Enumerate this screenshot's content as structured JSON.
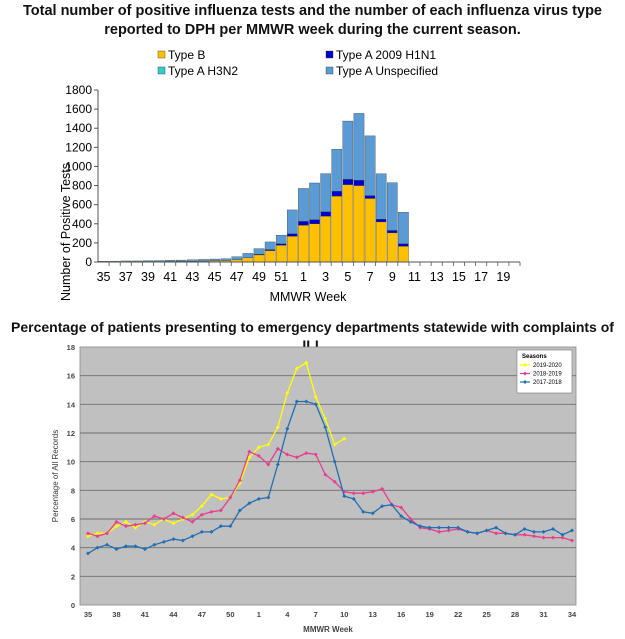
{
  "chart_data": [
    {
      "type": "bar",
      "stacked": true,
      "title_line1": "Total number of positive influenza tests and the number of each influenza virus type",
      "title_line2": "reported to DPH per MMWR week during the current season.",
      "xlabel": "MMWR Week",
      "ylabel": "Number of Positive Tests",
      "ylim": [
        0,
        1800
      ],
      "yticks": [
        "0",
        "200",
        "400",
        "600",
        "800",
        "1000",
        "1200",
        "1400",
        "1600",
        "1800"
      ],
      "xtick_labels": [
        "35",
        "37",
        "39",
        "41",
        "43",
        "45",
        "47",
        "49",
        "51",
        "1",
        "3",
        "5",
        "7",
        "9",
        "11",
        "13",
        "15",
        "17",
        "19"
      ],
      "categories": [
        "35",
        "36",
        "37",
        "38",
        "39",
        "40",
        "41",
        "42",
        "43",
        "44",
        "45",
        "46",
        "47",
        "48",
        "49",
        "50",
        "51",
        "52",
        "1",
        "2",
        "3",
        "4",
        "5",
        "6",
        "7",
        "8",
        "9",
        "10",
        "11",
        "12",
        "13",
        "14",
        "15",
        "16",
        "17",
        "18",
        "19",
        "20"
      ],
      "legend_position": "top",
      "grid": false,
      "series": [
        {
          "name": "Type B",
          "color": "#FFC000",
          "values": [
            3,
            3,
            4,
            4,
            5,
            5,
            6,
            7,
            8,
            10,
            12,
            15,
            25,
            45,
            75,
            120,
            175,
            270,
            385,
            400,
            480,
            690,
            810,
            800,
            665,
            420,
            305,
            165,
            0,
            0,
            0,
            0,
            0,
            0,
            0,
            0,
            0,
            0
          ]
        },
        {
          "name": "Type A 2009 H1N1",
          "color": "#0000CC",
          "values": [
            0,
            0,
            0,
            0,
            0,
            0,
            0,
            0,
            0,
            0,
            0,
            0,
            0,
            0,
            5,
            10,
            15,
            25,
            40,
            42,
            45,
            50,
            55,
            55,
            30,
            28,
            25,
            25,
            0,
            0,
            0,
            0,
            0,
            0,
            0,
            0,
            0,
            0
          ]
        },
        {
          "name": "Type A H3N2",
          "color": "#33CCCC",
          "values": [
            0,
            0,
            0,
            0,
            0,
            0,
            0,
            0,
            0,
            0,
            0,
            0,
            0,
            0,
            0,
            0,
            0,
            0,
            0,
            0,
            0,
            0,
            0,
            0,
            0,
            0,
            0,
            0,
            0,
            0,
            0,
            0,
            0,
            0,
            0,
            0,
            0,
            0
          ]
        },
        {
          "name": "Type A Unspecified",
          "color": "#5B9BD5",
          "values": [
            5,
            6,
            7,
            7,
            9,
            10,
            12,
            13,
            15,
            17,
            19,
            20,
            30,
            45,
            60,
            80,
            90,
            250,
            345,
            385,
            400,
            440,
            610,
            700,
            625,
            475,
            500,
            330,
            0,
            0,
            0,
            0,
            0,
            0,
            0,
            0,
            0,
            0
          ]
        }
      ]
    },
    {
      "type": "line",
      "title": "Percentage of patients presenting to emergency departments statewide with complaints of ILI.",
      "xlabel": "MMWR Week",
      "ylabel": "Percentage of All Records",
      "ylim": [
        0,
        18
      ],
      "yticks": [
        "0",
        "2",
        "4",
        "6",
        "8",
        "10",
        "12",
        "14",
        "16",
        "18"
      ],
      "xtick_labels": [
        "35",
        "38",
        "41",
        "44",
        "47",
        "50",
        "1",
        "4",
        "7",
        "10",
        "13",
        "16",
        "19",
        "22",
        "25",
        "28",
        "31",
        "34"
      ],
      "categories": [
        "35",
        "36",
        "37",
        "38",
        "39",
        "40",
        "41",
        "42",
        "43",
        "44",
        "45",
        "46",
        "47",
        "48",
        "49",
        "50",
        "51",
        "52",
        "1",
        "2",
        "3",
        "4",
        "5",
        "6",
        "7",
        "8",
        "9",
        "10",
        "11",
        "12",
        "13",
        "14",
        "15",
        "16",
        "17",
        "18",
        "19",
        "20",
        "21",
        "22",
        "23",
        "24",
        "25",
        "26",
        "27",
        "28",
        "29",
        "30",
        "31",
        "32",
        "33",
        "34"
      ],
      "legend_title": "Seasons",
      "legend_position": "top-right",
      "grid": true,
      "series": [
        {
          "name": "2019-2020",
          "color": "#FFFF00",
          "values": [
            4.8,
            5.0,
            5.0,
            5.5,
            5.8,
            5.4,
            5.8,
            5.6,
            6.0,
            5.7,
            6.0,
            6.3,
            6.9,
            7.7,
            7.4,
            7.5,
            8.5,
            10.3,
            11.0,
            11.2,
            12.4,
            14.8,
            16.5,
            16.9,
            14.5,
            13.0,
            11.2,
            11.6,
            null,
            null,
            null,
            null,
            null,
            null,
            null,
            null,
            null,
            null,
            null,
            null,
            null,
            null,
            null,
            null,
            null,
            null,
            null,
            null,
            null,
            null,
            null,
            null
          ]
        },
        {
          "name": "2018-2019",
          "color": "#E83E8C",
          "values": [
            5.0,
            4.8,
            5.0,
            5.8,
            5.5,
            5.6,
            5.7,
            6.2,
            6.0,
            6.4,
            6.1,
            5.8,
            6.3,
            6.5,
            6.6,
            7.5,
            8.7,
            10.7,
            10.4,
            9.8,
            10.9,
            10.5,
            10.3,
            10.6,
            10.5,
            9.1,
            8.6,
            7.9,
            7.8,
            7.8,
            7.9,
            8.1,
            7.0,
            6.8,
            6.0,
            5.4,
            5.3,
            5.1,
            5.2,
            5.3,
            5.1,
            5.0,
            5.2,
            5.0,
            5.0,
            4.9,
            4.9,
            4.8,
            4.7,
            4.7,
            4.7,
            4.5
          ]
        },
        {
          "name": "2017-2018",
          "color": "#1F6FB4",
          "values": [
            3.6,
            4.0,
            4.2,
            3.9,
            4.1,
            4.1,
            3.9,
            4.2,
            4.4,
            4.6,
            4.5,
            4.8,
            5.1,
            5.1,
            5.5,
            5.5,
            6.6,
            7.1,
            7.4,
            7.5,
            9.8,
            12.3,
            14.2,
            14.2,
            14.0,
            12.4,
            10.0,
            7.6,
            7.4,
            6.5,
            6.4,
            6.9,
            7.0,
            6.2,
            5.8,
            5.5,
            5.4,
            5.4,
            5.4,
            5.4,
            5.1,
            5.0,
            5.2,
            5.4,
            5.0,
            4.9,
            5.3,
            5.1,
            5.1,
            5.3,
            4.9,
            5.2
          ]
        }
      ]
    }
  ]
}
